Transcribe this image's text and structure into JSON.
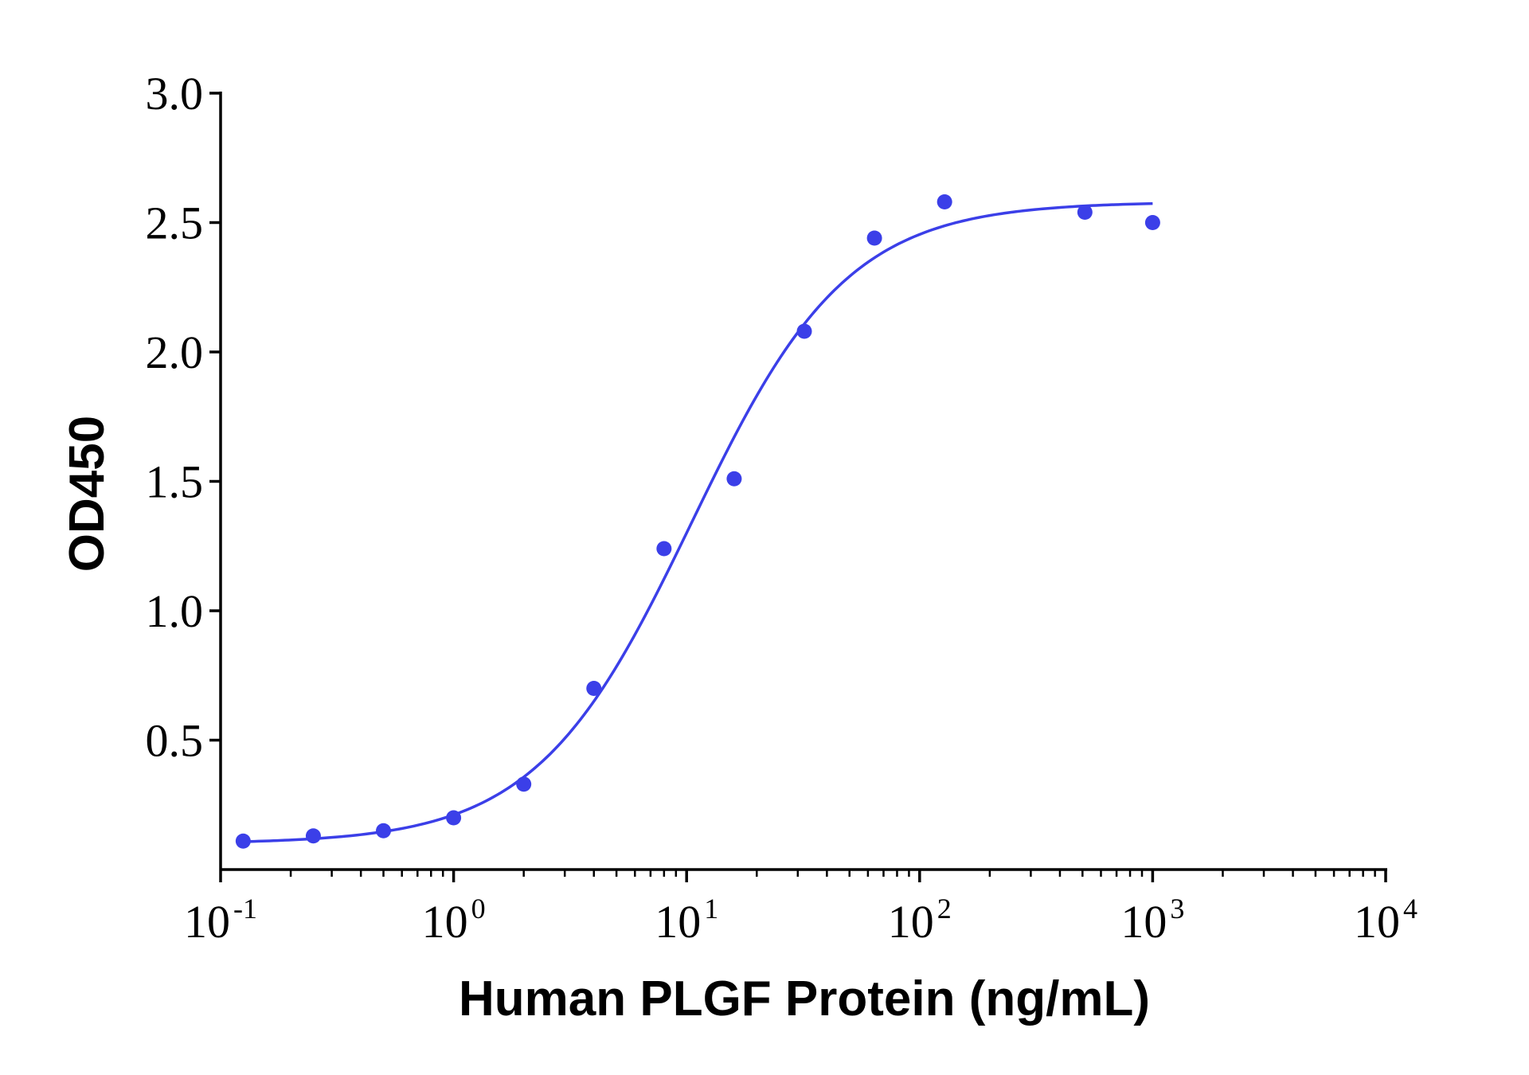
{
  "chart_data": {
    "type": "scatter",
    "title": "",
    "xlabel": "Human PLGF Protein (ng/mL)",
    "ylabel": "OD450",
    "x_scale": "log10",
    "xlim": [
      0.1,
      10000
    ],
    "ylim": [
      0,
      3.0
    ],
    "x_ticks": [
      {
        "base": "10",
        "exp": "-1"
      },
      {
        "base": "10",
        "exp": "0"
      },
      {
        "base": "10",
        "exp": "1"
      },
      {
        "base": "10",
        "exp": "2"
      },
      {
        "base": "10",
        "exp": "3"
      },
      {
        "base": "10",
        "exp": "4"
      }
    ],
    "y_ticks": [
      "0.5",
      "1.0",
      "1.5",
      "2.0",
      "2.5",
      "3.0"
    ],
    "grid": false,
    "color": "#3b3fe8",
    "series": [
      {
        "points": [
          {
            "x": 0.125,
            "y": 0.11
          },
          {
            "x": 0.25,
            "y": 0.13
          },
          {
            "x": 0.5,
            "y": 0.15
          },
          {
            "x": 1,
            "y": 0.2
          },
          {
            "x": 2,
            "y": 0.33
          },
          {
            "x": 4,
            "y": 0.7
          },
          {
            "x": 8,
            "y": 1.24
          },
          {
            "x": 16,
            "y": 1.51
          },
          {
            "x": 32,
            "y": 2.08
          },
          {
            "x": 64,
            "y": 2.44
          },
          {
            "x": 128,
            "y": 2.58
          },
          {
            "x": 512,
            "y": 2.54
          },
          {
            "x": 1000,
            "y": 2.5
          }
        ],
        "fit_curve": {
          "model": "4PL",
          "bottom": 0.1,
          "top": 2.58,
          "ec50": 10.5,
          "hill": 1.3,
          "x_range": [
            0.125,
            1000
          ]
        }
      }
    ]
  }
}
